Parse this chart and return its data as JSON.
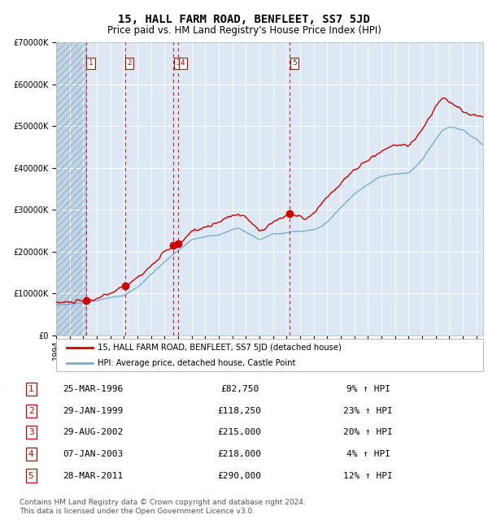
{
  "title": "15, HALL FARM ROAD, BENFLEET, SS7 5JD",
  "subtitle": "Price paid vs. HM Land Registry's House Price Index (HPI)",
  "red_label": "15, HALL FARM ROAD, BENFLEET, SS7 5JD (detached house)",
  "blue_label": "HPI: Average price, detached house, Castle Point",
  "footer": "Contains HM Land Registry data © Crown copyright and database right 2024.\nThis data is licensed under the Open Government Licence v3.0.",
  "transactions": [
    {
      "num": 1,
      "date": "25-MAR-1996",
      "price": 82750,
      "pct": "9%",
      "year": 1996.23
    },
    {
      "num": 2,
      "date": "29-JAN-1999",
      "price": 118250,
      "pct": "23%",
      "year": 1999.08
    },
    {
      "num": 3,
      "date": "29-AUG-2002",
      "price": 215000,
      "pct": "20%",
      "year": 2002.66
    },
    {
      "num": 4,
      "date": "07-JAN-2003",
      "price": 218000,
      "pct": "4%",
      "year": 2003.02
    },
    {
      "num": 5,
      "date": "28-MAR-2011",
      "price": 290000,
      "pct": "12%",
      "year": 2011.24
    }
  ],
  "ylim": [
    0,
    700000
  ],
  "xlim_start": 1994.0,
  "xlim_end": 2025.5,
  "background_plot": "#dce9f5",
  "background_hatch_color": "#c0d4e8",
  "grid_color": "#ffffff",
  "red_color": "#cc0000",
  "blue_color": "#7aadd4",
  "marker_color": "#cc0000",
  "vline_color": "#cc0000",
  "box_color": "#cc0000",
  "title_fontsize": 10,
  "subtitle_fontsize": 8.5,
  "tick_fontsize": 7,
  "footer_fontsize": 6.5
}
